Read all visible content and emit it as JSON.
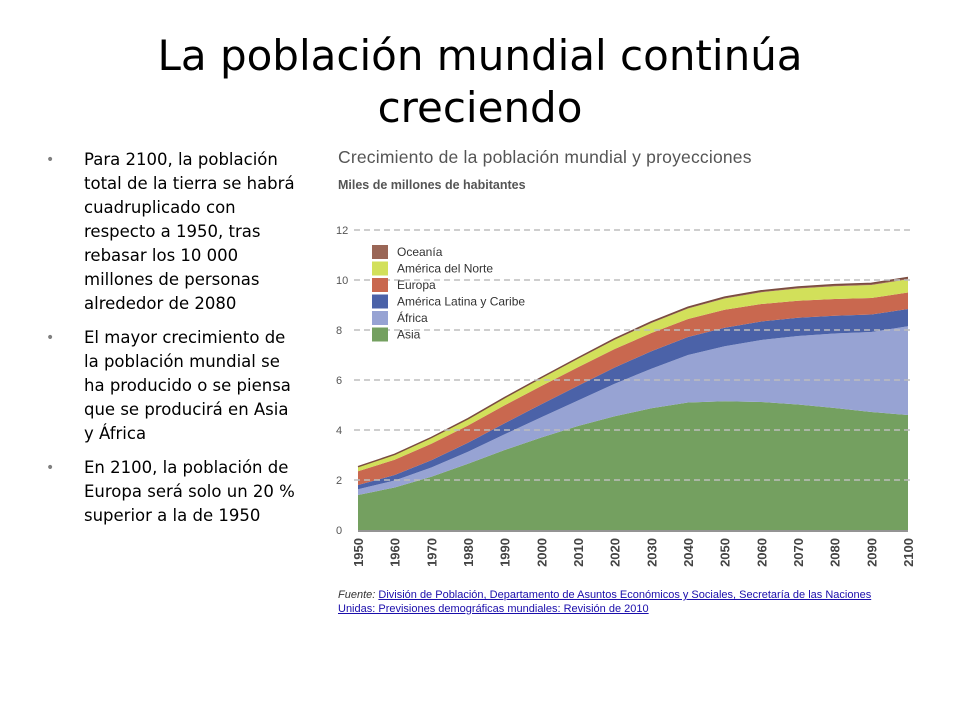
{
  "slide": {
    "title": "La población mundial continúa creciendo",
    "bullets": [
      "Para 2100, la población total de la tierra se habrá cuadruplicado con respecto a 1950, tras rebasar los 10 000 millones de personas alrededor de 2080",
      "El mayor crecimiento de la población mundial se ha producido o se piensa que se producirá en Asia y África",
      "En 2100, la población de Europa será solo un 20 % superior a la de 1950"
    ],
    "source_label": "Fuente:",
    "source_link": "División de Población, Departamento de Asuntos Económicos y Sociales, Secretaría de las Naciones Unidas: Previsiones demográficas mundiales: Revisión de 2010"
  },
  "chart_data": {
    "type": "area",
    "stacked": true,
    "title": "Crecimiento de la población mundial y proyecciones",
    "ylabel": "Miles de millones de habitantes",
    "xlabel": "",
    "x": [
      1950,
      1960,
      1970,
      1980,
      1990,
      2000,
      2010,
      2020,
      2030,
      2040,
      2050,
      2060,
      2070,
      2080,
      2090,
      2100
    ],
    "ylim": [
      0,
      12
    ],
    "yticks": [
      0,
      2,
      4,
      6,
      8,
      10,
      12
    ],
    "grid": "horizontal dashed",
    "legend_position": "top-left",
    "series": [
      {
        "name": "Asia",
        "color": "#74a060",
        "values": [
          1.4,
          1.7,
          2.13,
          2.65,
          3.2,
          3.7,
          4.16,
          4.55,
          4.87,
          5.1,
          5.15,
          5.12,
          5.02,
          4.88,
          4.72,
          4.6
        ]
      },
      {
        "name": "África",
        "color": "#97a3d3",
        "values": [
          0.23,
          0.28,
          0.37,
          0.48,
          0.63,
          0.81,
          1.02,
          1.3,
          1.58,
          1.9,
          2.2,
          2.48,
          2.74,
          2.98,
          3.2,
          3.55
        ]
      },
      {
        "name": "América Latina y Caribe",
        "color": "#4b62a8",
        "values": [
          0.17,
          0.22,
          0.29,
          0.36,
          0.44,
          0.52,
          0.59,
          0.65,
          0.7,
          0.72,
          0.74,
          0.74,
          0.73,
          0.71,
          0.7,
          0.69
        ]
      },
      {
        "name": "Europa",
        "color": "#c9684f",
        "values": [
          0.55,
          0.61,
          0.66,
          0.69,
          0.72,
          0.73,
          0.74,
          0.74,
          0.73,
          0.72,
          0.72,
          0.7,
          0.68,
          0.67,
          0.66,
          0.66
        ]
      },
      {
        "name": "América del Norte",
        "color": "#d2e05a",
        "values": [
          0.17,
          0.2,
          0.23,
          0.25,
          0.28,
          0.31,
          0.34,
          0.37,
          0.4,
          0.42,
          0.45,
          0.47,
          0.49,
          0.51,
          0.52,
          0.53
        ]
      },
      {
        "name": "Oceanía",
        "color": "#9a6656",
        "values": [
          0.013,
          0.016,
          0.02,
          0.023,
          0.027,
          0.031,
          0.036,
          0.041,
          0.046,
          0.05,
          0.055,
          0.058,
          0.062,
          0.065,
          0.067,
          0.069
        ]
      }
    ],
    "legend_order": [
      "Oceanía",
      "América del Norte",
      "Europa",
      "América Latina y Caribe",
      "África",
      "Asia"
    ]
  }
}
